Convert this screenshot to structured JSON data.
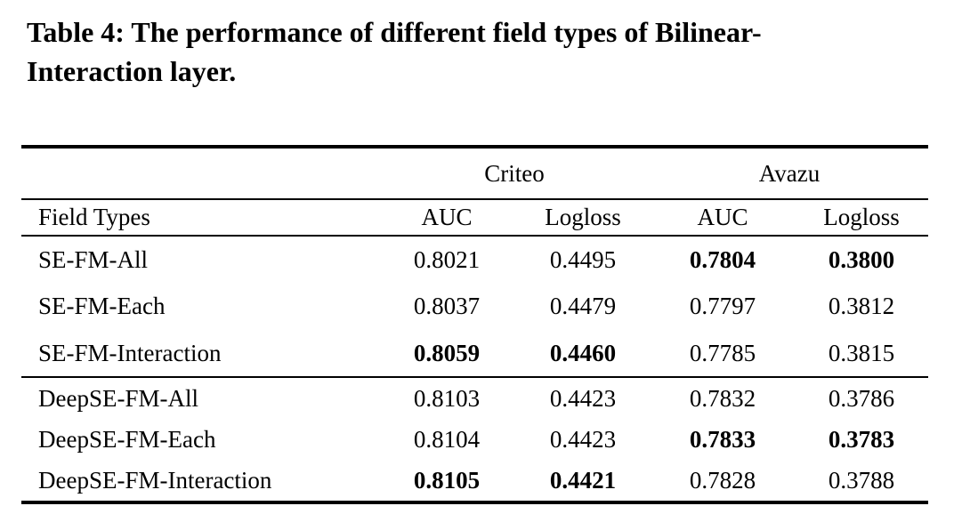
{
  "page": {
    "background_color": "#ffffff",
    "text_color": "#000000"
  },
  "caption": {
    "line1": "Table 4: The performance of different field types of Bilinear-",
    "line2": "Interaction layer."
  },
  "table": {
    "group_headers": {
      "criteo": "Criteo",
      "avazu": "Avazu"
    },
    "column_headers": {
      "field_types": "Field Types",
      "criteo_auc": "AUC",
      "criteo_logloss": "Logloss",
      "avazu_auc": "AUC",
      "avazu_logloss": "Logloss"
    },
    "sections": [
      {
        "rows": [
          {
            "field_type": "SE-FM-All",
            "cells": [
              {
                "value": "0.8021",
                "bold": false
              },
              {
                "value": "0.4495",
                "bold": false
              },
              {
                "value": "0.7804",
                "bold": true
              },
              {
                "value": "0.3800",
                "bold": true
              }
            ]
          },
          {
            "field_type": "SE-FM-Each",
            "cells": [
              {
                "value": "0.8037",
                "bold": false
              },
              {
                "value": "0.4479",
                "bold": false
              },
              {
                "value": "0.7797",
                "bold": false
              },
              {
                "value": "0.3812",
                "bold": false
              }
            ]
          },
          {
            "field_type": "SE-FM-Interaction",
            "cells": [
              {
                "value": "0.8059",
                "bold": true
              },
              {
                "value": "0.4460",
                "bold": true
              },
              {
                "value": "0.7785",
                "bold": false
              },
              {
                "value": "0.3815",
                "bold": false
              }
            ]
          }
        ]
      },
      {
        "rows": [
          {
            "field_type": "DeepSE-FM-All",
            "cells": [
              {
                "value": "0.8103",
                "bold": false
              },
              {
                "value": "0.4423",
                "bold": false
              },
              {
                "value": "0.7832",
                "bold": false
              },
              {
                "value": "0.3786",
                "bold": false
              }
            ]
          },
          {
            "field_type": "DeepSE-FM-Each",
            "cells": [
              {
                "value": "0.8104",
                "bold": false
              },
              {
                "value": "0.4423",
                "bold": false
              },
              {
                "value": "0.7833",
                "bold": true
              },
              {
                "value": "0.3783",
                "bold": true
              }
            ]
          },
          {
            "field_type": "DeepSE-FM-Interaction",
            "cells": [
              {
                "value": "0.8105",
                "bold": true
              },
              {
                "value": "0.4421",
                "bold": true
              },
              {
                "value": "0.7828",
                "bold": false
              },
              {
                "value": "0.3788",
                "bold": false
              }
            ]
          }
        ]
      }
    ]
  }
}
